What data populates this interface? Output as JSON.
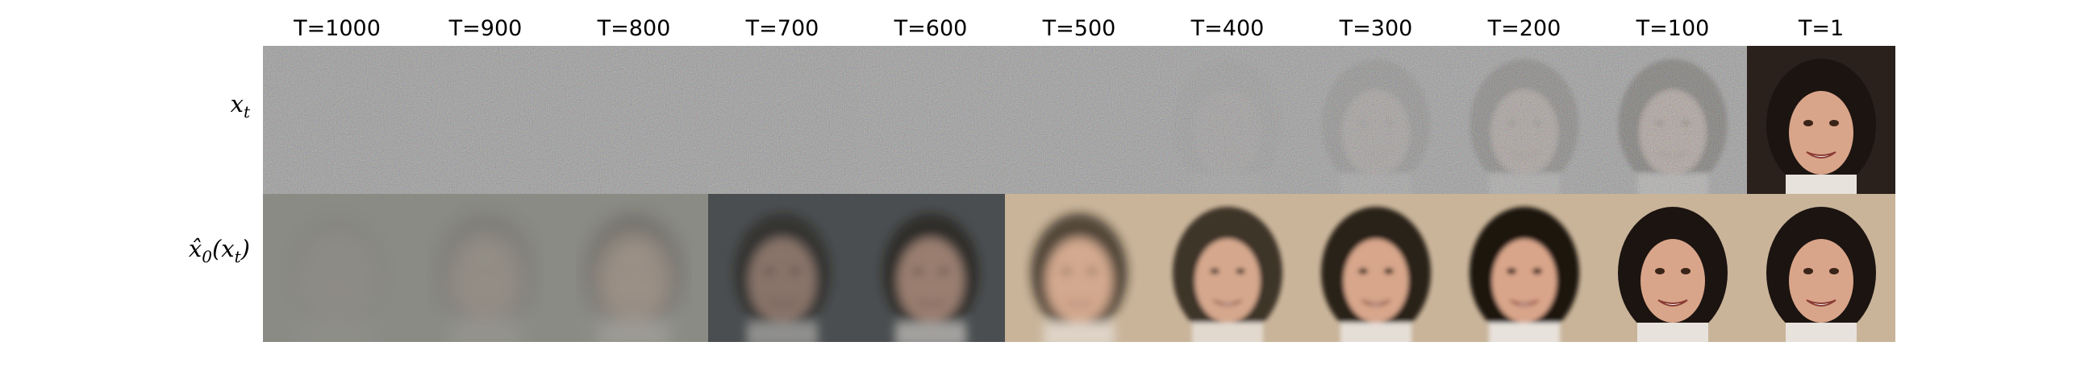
{
  "timesteps": [
    "T=1000",
    "T=900",
    "T=800",
    "T=700",
    "T=600",
    "T=500",
    "T=400",
    "T=300",
    "T=200",
    "T=100",
    "T=1"
  ],
  "rows": {
    "noisy": {
      "label": "x_t"
    },
    "prediction": {
      "label": "x̂_0(x_t)"
    }
  },
  "image_description": "Diffusion reverse-process grid: top row shows noisy samples x_t becoming a smiling dark-haired woman at T=1; bottom row shows predicted clean image emerging from gray blur.",
  "colors": {
    "noise_gray": "#8a8a8a",
    "hair": "#1c1410",
    "skin": "#d9a58a",
    "background_warm": "#c9b49a"
  }
}
